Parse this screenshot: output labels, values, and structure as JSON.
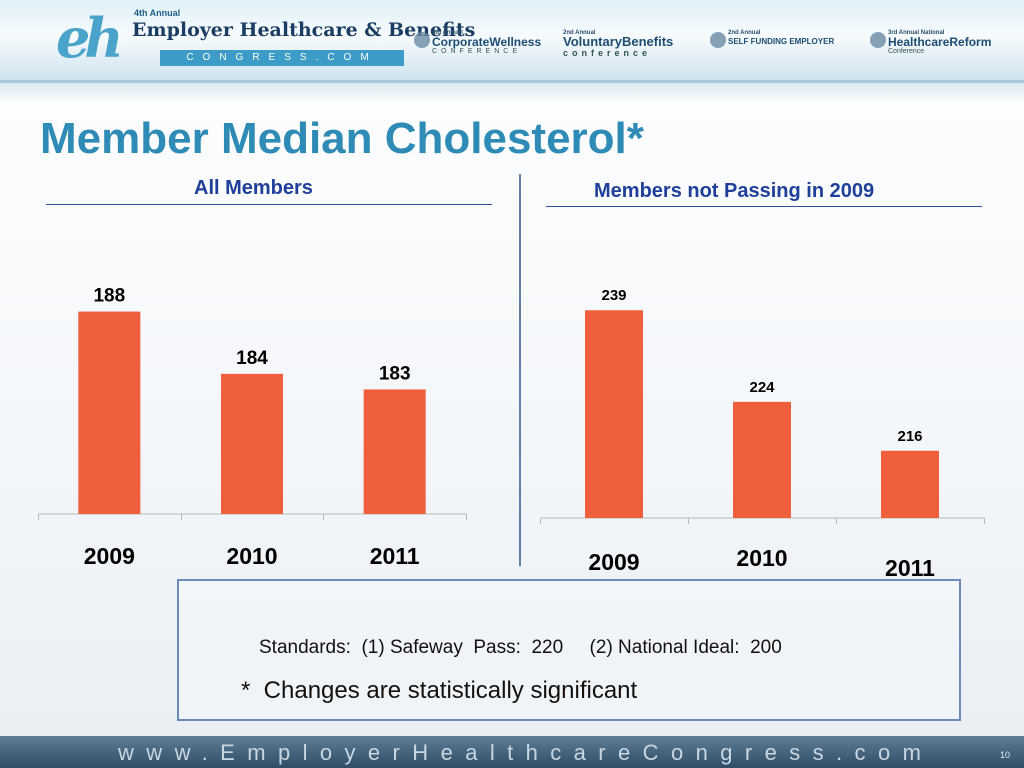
{
  "header": {
    "logo_main": {
      "mark": "eh",
      "annual": "4th Annual",
      "title": "Employer Healthcare & Benefits",
      "subtitle": "CONGRESS.COM"
    },
    "logos": [
      {
        "annual": "4th Annual",
        "name": "CorporateWellness",
        "tag": "CONFERENCE"
      },
      {
        "annual": "2nd Annual",
        "name": "VoluntaryBenefits",
        "tag": "conference"
      },
      {
        "annual": "2nd Annual",
        "name": "SELF FUNDING EMPLOYER",
        "tag": ""
      },
      {
        "annual": "3rd Annual National",
        "name": "HealthcareReform",
        "tag": "Conference"
      }
    ]
  },
  "title": "Member Median Cholesterol*",
  "chart_data": [
    {
      "type": "bar",
      "title": "All Members",
      "categories": [
        "2009",
        "2010",
        "2011"
      ],
      "values": [
        188,
        184,
        183
      ],
      "ylim": [
        175,
        189
      ],
      "grid": false,
      "legend": "none",
      "color": "#f05f3b"
    },
    {
      "type": "bar",
      "title": "Members not Passing in 2009",
      "categories": [
        "2009",
        "2010",
        "2011"
      ],
      "values": [
        239,
        224,
        216
      ],
      "ylim": [
        205,
        241
      ],
      "grid": false,
      "legend": "none",
      "color": "#f05f3b"
    }
  ],
  "notes": {
    "standards": "Standards:  (1) Safeway  Pass:  220     (2) National Ideal:  200",
    "significance": "*  Changes are statistically significant"
  },
  "footer": {
    "url": "www.EmployerHealthcareCongress.com",
    "page_number": "10"
  }
}
